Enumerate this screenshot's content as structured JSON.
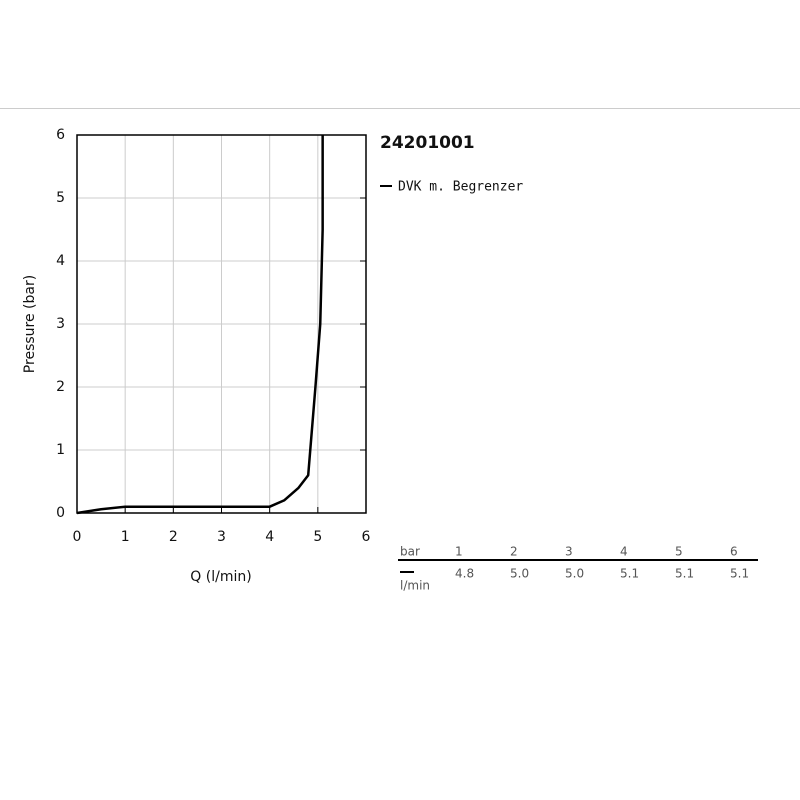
{
  "chart_data": {
    "type": "line",
    "title": "24201001",
    "x_label": "Q (l/min)",
    "y_label": "Pressure (bar)",
    "x": [
      0,
      0.5,
      1,
      2,
      3,
      4,
      4.3,
      4.6,
      4.8,
      4.95,
      5.05,
      5.1,
      5.1
    ],
    "series": [
      {
        "name": "DVK m. Begrenzer",
        "color": "#000000",
        "values": [
          0,
          0.06,
          0.1,
          0.1,
          0.1,
          0.1,
          0.2,
          0.4,
          0.6,
          2,
          3,
          4.5,
          6
        ]
      }
    ],
    "xlim": [
      0,
      6
    ],
    "xticks": [
      0,
      1,
      2,
      3,
      4,
      5,
      6
    ],
    "ylim": [
      0,
      6
    ],
    "yticks": [
      0,
      1,
      2,
      3,
      4,
      5,
      6
    ],
    "grid": true
  },
  "table": {
    "header": [
      "bar",
      "1",
      "2",
      "3",
      "4",
      "5",
      "6"
    ],
    "unit": "l/min",
    "values": [
      "4.8",
      "5.0",
      "5.0",
      "5.1",
      "5.1",
      "5.1"
    ]
  }
}
